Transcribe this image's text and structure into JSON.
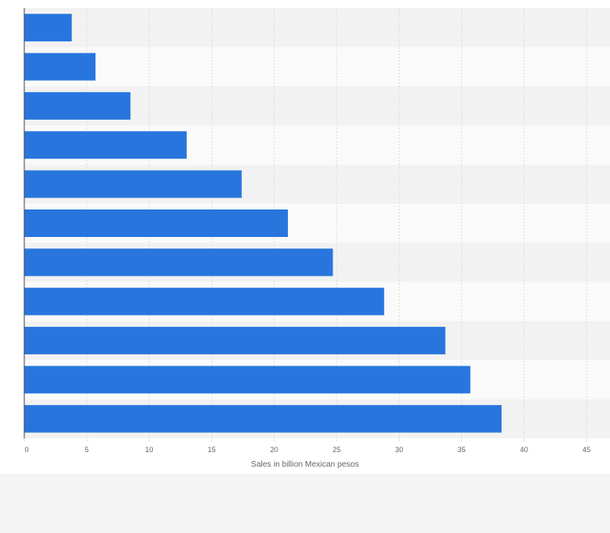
{
  "chart_data": {
    "type": "bar",
    "orientation": "horizontal",
    "values": [
      3.8,
      5.7,
      8.5,
      13.0,
      17.4,
      21.1,
      24.7,
      28.8,
      33.7,
      35.7,
      38.2
    ],
    "xlabel": "Sales in billion Mexican pesos",
    "ylabel": "",
    "xlim": [
      0,
      45
    ],
    "xticks": [
      0,
      5,
      10,
      15,
      20,
      25,
      30,
      35,
      40,
      45
    ],
    "xtick_labels": [
      "0",
      "5",
      "10",
      "15",
      "20",
      "25",
      "30",
      "35",
      "40",
      "45"
    ],
    "grid": true,
    "colors": {
      "bar": "#2876dd",
      "band_dark": "#f2f2f2",
      "band_light": "#fafafa",
      "grid": "#dcdcdc",
      "axis": "#444444",
      "footer": "#f4f4f4"
    }
  }
}
